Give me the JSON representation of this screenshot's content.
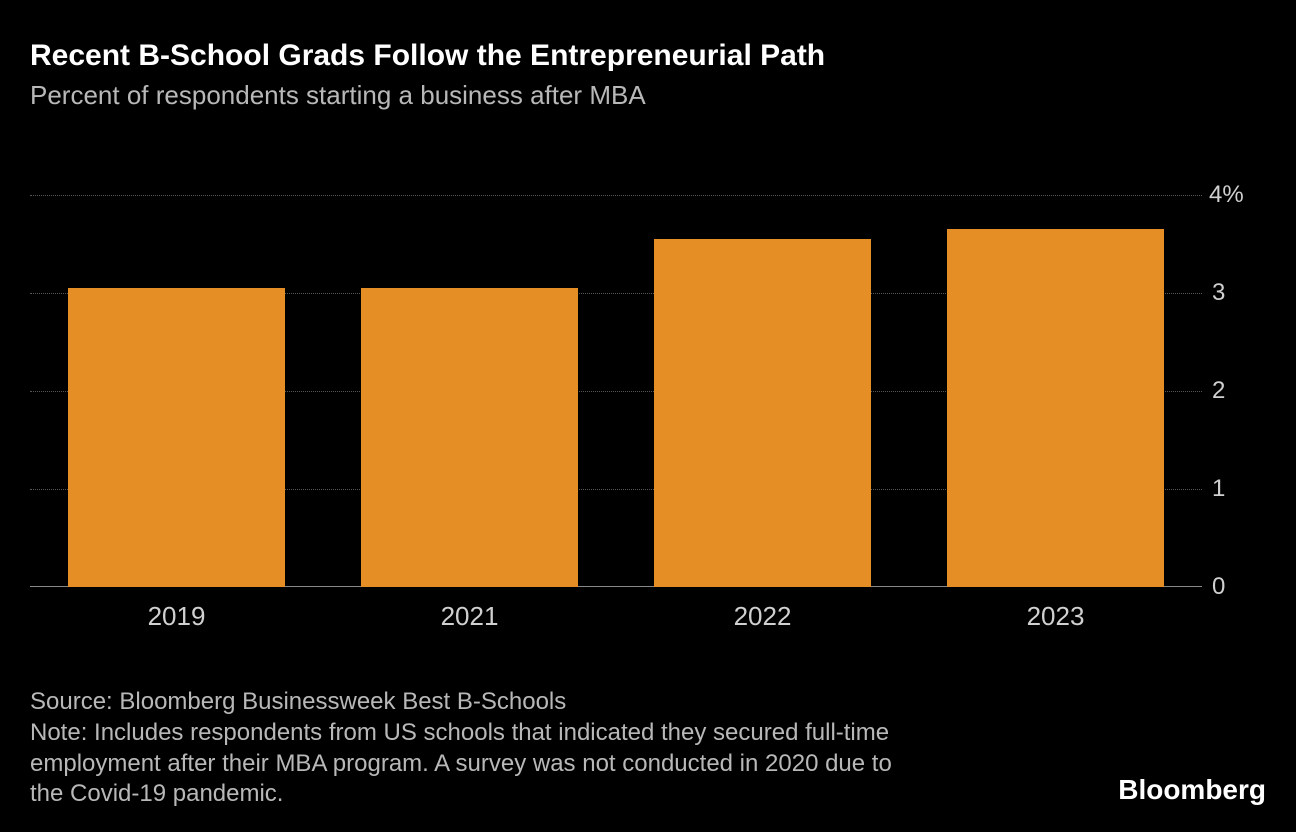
{
  "chart": {
    "type": "bar",
    "title": "Recent B-School Grads Follow the Entrepreneurial Path",
    "subtitle": "Percent of respondents starting a business after MBA",
    "categories": [
      "2019",
      "2021",
      "2022",
      "2023"
    ],
    "values": [
      3.05,
      3.05,
      3.55,
      3.65
    ],
    "bar_color": "#e58e26",
    "background_color": "#000000",
    "grid_color": "#555555",
    "baseline_color": "#888888",
    "text_color": "#ffffff",
    "muted_text_color": "#b8b8b8",
    "axis_label_color": "#d0d0d0",
    "ylim": [
      0,
      4
    ],
    "yticks": [
      0,
      1,
      2,
      3,
      4
    ],
    "ytick_labels": [
      "0",
      "1",
      "2",
      "3",
      "4%"
    ],
    "bar_width_ratio": 0.74,
    "title_fontsize": 30,
    "subtitle_fontsize": 26,
    "axis_fontsize": 24,
    "xaxis_fontsize": 26
  },
  "footer": {
    "source": "Source: Bloomberg Businessweek Best B-Schools",
    "note": "Note: Includes respondents from US schools that indicated they secured full-time employment after their MBA program. A survey was not conducted in 2020 due to the Covid-19 pandemic.",
    "brand": "Bloomberg"
  }
}
